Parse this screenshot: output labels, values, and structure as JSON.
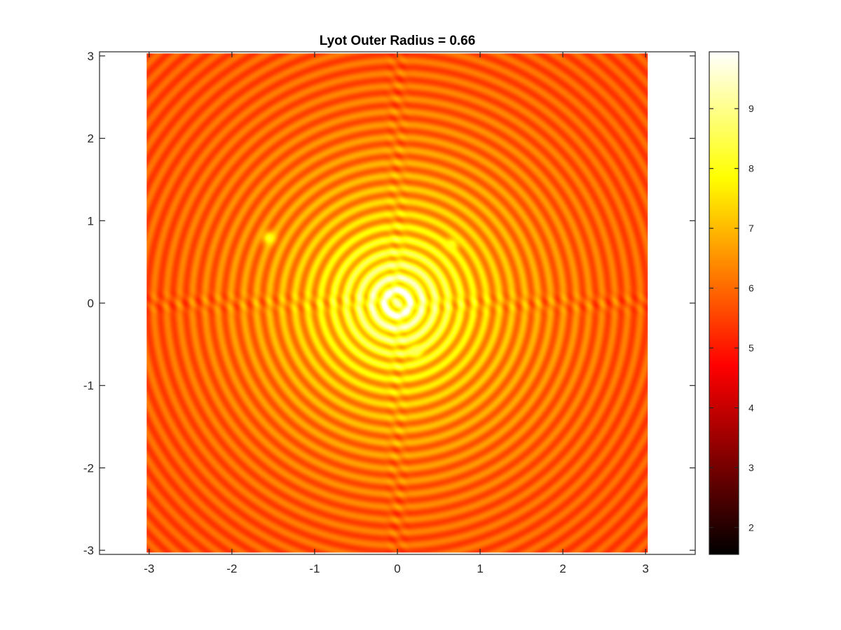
{
  "chart_data": {
    "type": "heatmap",
    "title": "Lyot Outer Radius = 0.66",
    "xlabel": "",
    "ylabel": "",
    "xlim": [
      -3.6,
      3.6
    ],
    "ylim": [
      -3.05,
      3.05
    ],
    "image_extent": {
      "x": [
        -3.03,
        3.03
      ],
      "y": [
        -3.03,
        3.03
      ]
    },
    "x_ticks": [
      -3,
      -2,
      -1,
      0,
      1,
      2,
      3
    ],
    "x_tick_labels": [
      "-3",
      "-2",
      "-1",
      "0",
      "1",
      "2",
      "3"
    ],
    "y_ticks": [
      3,
      2,
      1,
      0,
      -1,
      -2,
      -3
    ],
    "y_tick_labels": [
      "3",
      "2",
      "1",
      "0",
      "-1",
      "-2",
      "-3"
    ],
    "colormap": "hot",
    "clim": [
      1.55,
      9.95
    ],
    "colorbar": {
      "ticks": [
        9,
        8,
        7,
        6,
        5,
        4,
        3,
        2
      ],
      "tick_labels": [
        "9",
        "8",
        "7",
        "6",
        "5",
        "4",
        "3",
        "2"
      ]
    },
    "central_peak": {
      "x": 0,
      "y": 0,
      "value": 9.9
    },
    "bright_sources": [
      {
        "x": -1.55,
        "y": 0.79,
        "value": 8.2
      },
      {
        "x": 0.66,
        "y": 0.71,
        "value": 8.1
      },
      {
        "x": 0.23,
        "y": -0.59,
        "value": 8.6
      }
    ],
    "ring_period": 0.155,
    "background_level": 5.6,
    "grid": false,
    "box": true
  }
}
